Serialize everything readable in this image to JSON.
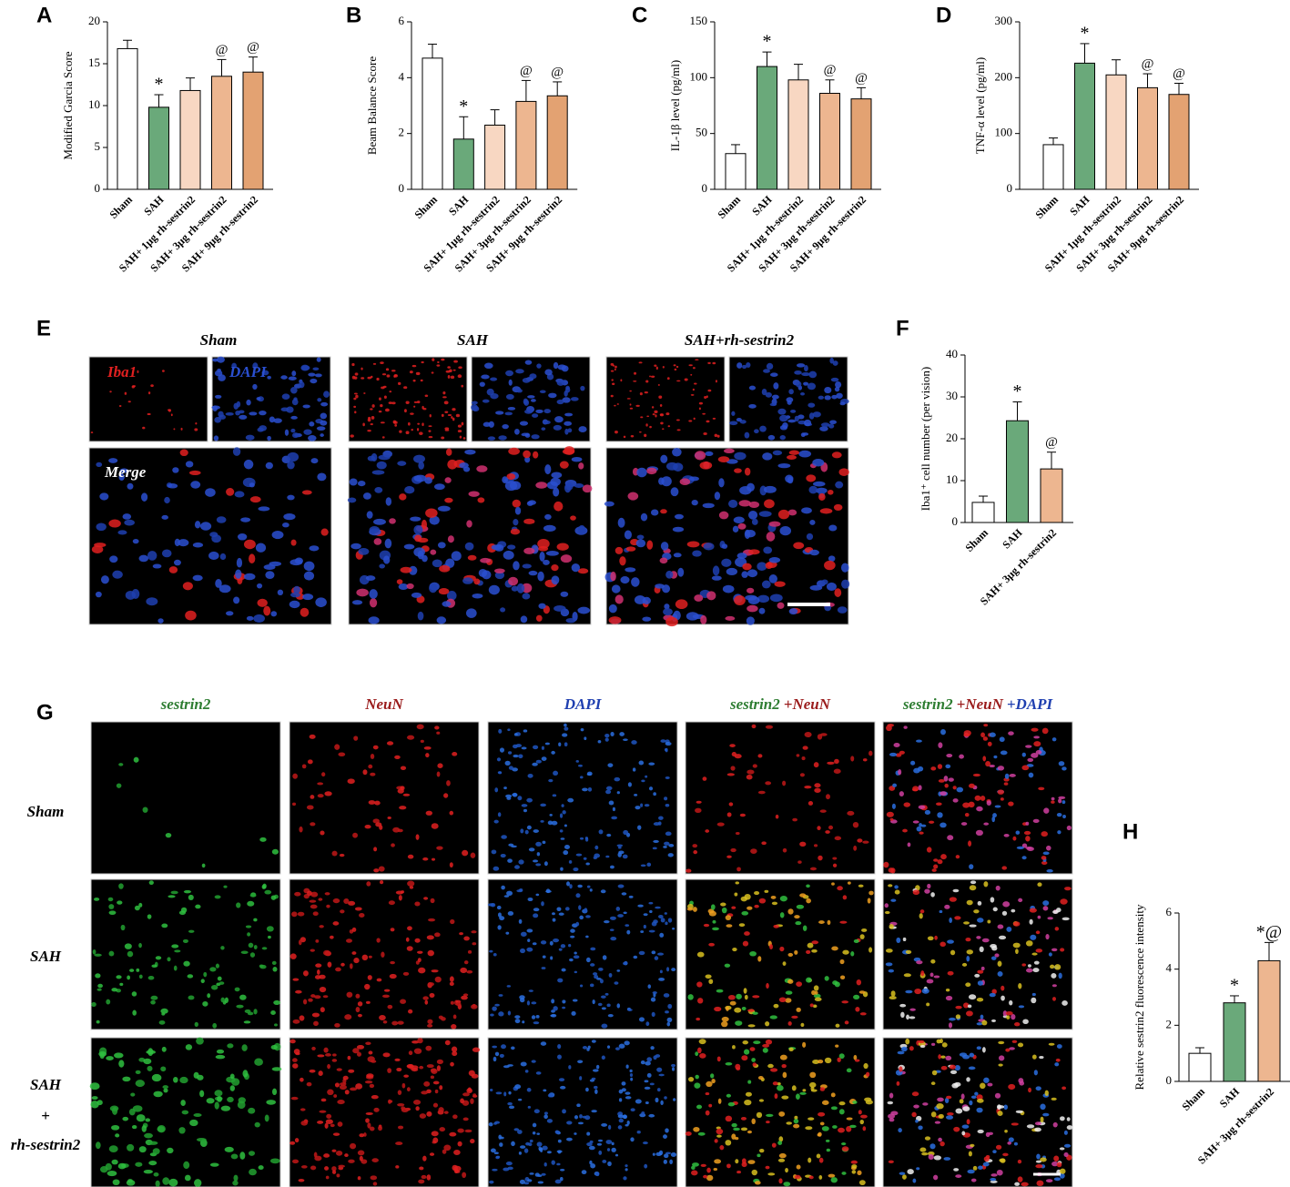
{
  "chart_data": [
    {
      "type": "bar",
      "panel": "A",
      "ylabel": "Modified Garcia Score",
      "categories": [
        "Sham",
        "SAH",
        "SAH+ 1μg rh-sestrin2",
        "SAH+ 3μg rh-sestrin2",
        "SAH+ 9μg rh-sestrin2"
      ],
      "values": [
        16.8,
        9.8,
        11.8,
        13.5,
        14.0
      ],
      "errors": [
        1.0,
        1.5,
        1.5,
        2.0,
        1.8
      ],
      "annotations": [
        null,
        "*",
        null,
        "@",
        "@"
      ],
      "colors": [
        "#ffffff",
        "#6aa97a",
        "#f8d7c2",
        "#edb690",
        "#e3a272"
      ],
      "ylim": [
        0,
        20
      ],
      "yticks": [
        0,
        5,
        10,
        15,
        20
      ]
    },
    {
      "type": "bar",
      "panel": "B",
      "ylabel": "Beam Balance Score",
      "categories": [
        "Sham",
        "SAH",
        "SAH+ 1μg rh-sestrin2",
        "SAH+ 3μg rh-sestrin2",
        "SAH+ 9μg rh-sestrin2"
      ],
      "values": [
        4.7,
        1.8,
        2.3,
        3.15,
        3.35
      ],
      "errors": [
        0.5,
        0.8,
        0.55,
        0.75,
        0.5
      ],
      "annotations": [
        null,
        "*",
        null,
        "@",
        "@"
      ],
      "colors": [
        "#ffffff",
        "#6aa97a",
        "#f8d7c2",
        "#edb690",
        "#e3a272"
      ],
      "ylim": [
        0,
        6
      ],
      "yticks": [
        0,
        2,
        4,
        6
      ]
    },
    {
      "type": "bar",
      "panel": "C",
      "ylabel": "IL-1β level (pg/ml)",
      "categories": [
        "Sham",
        "SAH",
        "SAH+ 1μg rh-sestrin2",
        "SAH+ 3μg rh-sestrin2",
        "SAH+ 9μg rh-sestrin2"
      ],
      "values": [
        32,
        110,
        98,
        86,
        81
      ],
      "errors": [
        8,
        13,
        14,
        12,
        10
      ],
      "annotations": [
        null,
        "*",
        null,
        "@",
        "@"
      ],
      "colors": [
        "#ffffff",
        "#6aa97a",
        "#f8d7c2",
        "#edb690",
        "#e3a272"
      ],
      "ylim": [
        0,
        150
      ],
      "yticks": [
        0,
        50,
        100,
        150
      ]
    },
    {
      "type": "bar",
      "panel": "D",
      "ylabel": "TNF-α level (pg/ml)",
      "categories": [
        "Sham",
        "SAH",
        "SAH+ 1μg rh-sestrin2",
        "SAH+ 3μg rh-sestrin2",
        "SAH+ 9μg rh-sestrin2"
      ],
      "values": [
        80,
        226,
        205,
        182,
        170
      ],
      "errors": [
        12,
        35,
        27,
        25,
        20
      ],
      "annotations": [
        null,
        "*",
        null,
        "@",
        "@"
      ],
      "colors": [
        "#ffffff",
        "#6aa97a",
        "#f8d7c2",
        "#edb690",
        "#e3a272"
      ],
      "ylim": [
        0,
        300
      ],
      "yticks": [
        0,
        100,
        200,
        300
      ]
    },
    {
      "type": "bar",
      "panel": "F",
      "ylabel": "Iba1⁺ cell number (per vision)",
      "categories": [
        "Sham",
        "SAH",
        "SAH+ 3μg rh-sestrin2"
      ],
      "values": [
        4.8,
        24.3,
        12.8
      ],
      "errors": [
        1.5,
        4.5,
        4.0
      ],
      "annotations": [
        null,
        "*",
        "@"
      ],
      "colors": [
        "#ffffff",
        "#6aa97a",
        "#edb690"
      ],
      "ylim": [
        0,
        40
      ],
      "yticks": [
        0,
        10,
        20,
        30,
        40
      ]
    },
    {
      "type": "bar",
      "panel": "H",
      "ylabel": "Relative sestrin2 fluorescence intensity",
      "categories": [
        "Sham",
        "SAH",
        "SAH+ 3μg rh-sestrin2"
      ],
      "values": [
        1.0,
        2.8,
        4.3
      ],
      "errors": [
        0.2,
        0.25,
        0.65
      ],
      "annotations": [
        null,
        "*",
        "*@"
      ],
      "colors": [
        "#ffffff",
        "#6aa97a",
        "#edb690"
      ],
      "ylim": [
        0,
        6
      ],
      "yticks": [
        0,
        2,
        4,
        6
      ]
    }
  ],
  "images": {
    "panel_e": "E",
    "panel_g": "G",
    "e_groups": [
      "Sham",
      "SAH",
      "SAH+rh-sestrin2"
    ],
    "e_channels": [
      "Iba1",
      "DAPI",
      "Merge"
    ],
    "g_columns": [
      [
        "sestrin2"
      ],
      [
        "NeuN"
      ],
      [
        "DAPI"
      ],
      [
        "sestrin2",
        "+NeuN"
      ],
      [
        "sestrin2",
        "+NeuN",
        "+DAPI"
      ]
    ],
    "g_rows": [
      [
        "Sham"
      ],
      [
        "SAH"
      ],
      [
        "SAH",
        "+",
        "rh-sestrin2"
      ]
    ]
  }
}
